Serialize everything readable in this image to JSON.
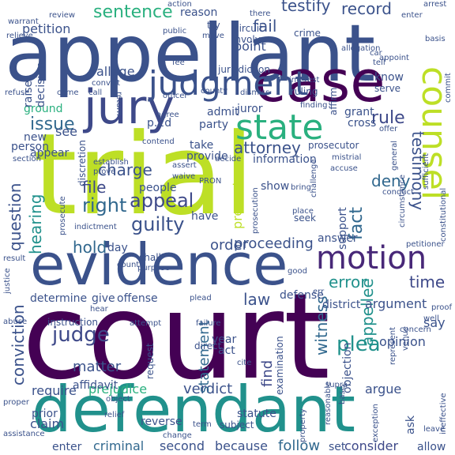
{
  "words": [
    {
      "text": "court",
      "color": "#440154"
    },
    {
      "text": "trial",
      "color": "#bddf26"
    },
    {
      "text": "appellant",
      "color": "#3b528b"
    },
    {
      "text": "defendant",
      "color": "#21918c"
    },
    {
      "text": "evidence",
      "color": "#3b528b"
    },
    {
      "text": "case",
      "color": "#440154"
    },
    {
      "text": "jury",
      "color": "#3e4989"
    },
    {
      "text": "judgment",
      "color": "#3b528b"
    },
    {
      "text": "counsel",
      "color": "#bddf26"
    },
    {
      "text": "state",
      "color": "#2ab07f"
    },
    {
      "text": "motion",
      "color": "#482878"
    },
    {
      "text": "attorney",
      "color": "#3b528b"
    },
    {
      "text": "appeal",
      "color": "#3e4989"
    },
    {
      "text": "guilty",
      "color": "#3b528b"
    },
    {
      "text": "right",
      "color": "#31688e"
    },
    {
      "text": "file",
      "color": "#3e4989"
    },
    {
      "text": "charge",
      "color": "#3b528b"
    },
    {
      "text": "issue",
      "color": "#31688e"
    },
    {
      "text": "rule",
      "color": "#3e4989"
    },
    {
      "text": "sentence",
      "color": "#2ab07f"
    },
    {
      "text": "testify",
      "color": "#3b528b"
    },
    {
      "text": "record",
      "color": "#3b528b"
    },
    {
      "text": "error",
      "color": "#21918c"
    },
    {
      "text": "time",
      "color": "#3e4989"
    },
    {
      "text": "judge",
      "color": "#3e4989"
    },
    {
      "text": "plea",
      "color": "#21918c"
    },
    {
      "text": "conviction",
      "color": "#3b528b"
    },
    {
      "text": "testimony",
      "color": "#3b528b"
    },
    {
      "text": "fact",
      "color": "#31688e"
    },
    {
      "text": "appellee",
      "color": "#21918c"
    },
    {
      "text": "witness",
      "color": "#31688e"
    },
    {
      "text": "proceeding",
      "color": "#3b528b"
    },
    {
      "text": "hearing",
      "color": "#21918c"
    },
    {
      "text": "question",
      "color": "#3b528b"
    },
    {
      "text": "verdict",
      "color": "#3b528b"
    },
    {
      "text": "statement",
      "color": "#31688e"
    },
    {
      "text": "deny",
      "color": "#31688e"
    },
    {
      "text": "present",
      "color": "#bddf26"
    },
    {
      "text": "order",
      "color": "#3b528b"
    },
    {
      "text": "hold",
      "color": "#31688e"
    },
    {
      "text": "law",
      "color": "#3b528b"
    },
    {
      "text": "find",
      "color": "#3e4989"
    },
    {
      "text": "fail",
      "color": "#3b528b"
    },
    {
      "text": "point",
      "color": "#3b528b"
    },
    {
      "text": "petition",
      "color": "#3b528b"
    },
    {
      "text": "prejudice",
      "color": "#2ab07f"
    },
    {
      "text": "matter",
      "color": "#3b528b"
    },
    {
      "text": "criminal",
      "color": "#31688e"
    },
    {
      "text": "second",
      "color": "#3b528b"
    },
    {
      "text": "because",
      "color": "#3b528b"
    },
    {
      "text": "follow",
      "color": "#31688e"
    },
    {
      "text": "consider",
      "color": "#3e4989"
    },
    {
      "text": "claim",
      "color": "#3b528b"
    },
    {
      "text": "require",
      "color": "#3b528b"
    },
    {
      "text": "reverse",
      "color": "#3b528b"
    },
    {
      "text": "argue",
      "color": "#3b528b"
    },
    {
      "text": "opinion",
      "color": "#3b528b"
    },
    {
      "text": "argument",
      "color": "#3b528b"
    },
    {
      "text": "say",
      "color": "#3b528b"
    },
    {
      "text": "defense",
      "color": "#3b528b"
    },
    {
      "text": "determine",
      "color": "#3b528b"
    },
    {
      "text": "give",
      "color": "#3b528b"
    },
    {
      "text": "offense",
      "color": "#3b528b"
    },
    {
      "text": "people",
      "color": "#3b528b"
    },
    {
      "text": "new",
      "color": "#3b528b"
    },
    {
      "text": "person",
      "color": "#3b528b"
    },
    {
      "text": "party",
      "color": "#3b528b"
    },
    {
      "text": "juror",
      "color": "#3b528b"
    },
    {
      "text": "grant",
      "color": "#3b528b"
    },
    {
      "text": "cross",
      "color": "#3b528b"
    },
    {
      "text": "admit",
      "color": "#3b528b"
    },
    {
      "text": "ground",
      "color": "#2ab07f"
    },
    {
      "text": "decision",
      "color": "#3b528b"
    },
    {
      "text": "raise",
      "color": "#3b528b"
    },
    {
      "text": "allege",
      "color": "#3b528b"
    },
    {
      "text": "appear",
      "color": "#3b528b"
    },
    {
      "text": "see",
      "color": "#3b528b"
    },
    {
      "text": "take",
      "color": "#3b528b"
    },
    {
      "text": "provide",
      "color": "#3b528b"
    },
    {
      "text": "information",
      "color": "#3b528b"
    },
    {
      "text": "prosecutor",
      "color": "#3b528b"
    },
    {
      "text": "show",
      "color": "#3b528b"
    },
    {
      "text": "support",
      "color": "#3b528b"
    },
    {
      "text": "year",
      "color": "#3b528b"
    },
    {
      "text": "act",
      "color": "#3b528b"
    },
    {
      "text": "district",
      "color": "#3b528b"
    },
    {
      "text": "objection",
      "color": "#3b528b"
    },
    {
      "text": "examination",
      "color": "#3b528b"
    },
    {
      "text": "request",
      "color": "#3b528b"
    },
    {
      "text": "affidavit",
      "color": "#3b528b"
    },
    {
      "text": "prior",
      "color": "#3b528b"
    },
    {
      "text": "statute",
      "color": "#3b528b"
    },
    {
      "text": "ask",
      "color": "#3b528b"
    },
    {
      "text": "enter",
      "color": "#3b528b"
    },
    {
      "text": "know",
      "color": "#3b528b"
    },
    {
      "text": "serve",
      "color": "#3b528b"
    },
    {
      "text": "affirm",
      "color": "#3b528b"
    },
    {
      "text": "p.2d",
      "color": "#3b528b"
    },
    {
      "text": "crime",
      "color": "#3b528b"
    },
    {
      "text": "answer",
      "color": "#3b528b"
    },
    {
      "text": "day",
      "color": "#3b528b"
    },
    {
      "text": "shall",
      "color": "#3b528b"
    },
    {
      "text": "have",
      "color": "#3b528b"
    },
    {
      "text": "reason",
      "color": "#3b528b"
    },
    {
      "text": "action",
      "color": "#3b528b"
    },
    {
      "text": "ruling",
      "color": "#3b528b"
    },
    {
      "text": "finding",
      "color": "#3b528b"
    },
    {
      "text": "allow",
      "color": "#3b528b"
    },
    {
      "text": "instruction",
      "color": "#3b528b"
    },
    {
      "text": "discretion",
      "color": "#3b528b"
    },
    {
      "text": "jurisdiction",
      "color": "#3b528b"
    },
    {
      "text": "circuit",
      "color": "#3b528b"
    },
    {
      "text": "involve",
      "color": "#3b528b"
    },
    {
      "text": "arrest",
      "color": "#3b528b"
    },
    {
      "text": "supra",
      "color": "#3b528b"
    },
    {
      "text": "exception",
      "color": "#3b528b"
    },
    {
      "text": "set",
      "color": "#3b528b"
    },
    {
      "text": "subject",
      "color": "#3b528b"
    },
    {
      "text": "direct",
      "color": "#3b528b"
    },
    {
      "text": "term",
      "color": "#3b528b"
    },
    {
      "text": "cite",
      "color": "#3b528b"
    },
    {
      "text": "result",
      "color": "#3b528b"
    },
    {
      "text": "justice",
      "color": "#3b528b"
    },
    {
      "text": "abuse",
      "color": "#3b528b"
    },
    {
      "text": "good",
      "color": "#3b528b"
    },
    {
      "text": "relief",
      "color": "#3b528b"
    },
    {
      "text": "proper",
      "color": "#3b528b"
    },
    {
      "text": "assistance",
      "color": "#3b528b"
    },
    {
      "text": "ineffective",
      "color": "#3b528b"
    },
    {
      "text": "leave",
      "color": "#3b528b"
    },
    {
      "text": "venue",
      "color": "#3b528b"
    },
    {
      "text": "concern",
      "color": "#3b528b"
    },
    {
      "text": "proof",
      "color": "#3b528b"
    },
    {
      "text": "petitioner",
      "color": "#3b528b"
    },
    {
      "text": "commit",
      "color": "#3b528b"
    },
    {
      "text": "convict",
      "color": "#3b528b"
    },
    {
      "text": "officer",
      "color": "#3b528b"
    },
    {
      "text": "dismiss",
      "color": "#3b528b"
    },
    {
      "text": "county",
      "color": "#3b528b"
    },
    {
      "text": "interest",
      "color": "#3b528b"
    },
    {
      "text": "review",
      "color": "#3b528b"
    },
    {
      "text": "warrant",
      "color": "#3b528b"
    },
    {
      "text": "refuse",
      "color": "#3b528b"
    },
    {
      "text": "basis",
      "color": "#3b528b"
    },
    {
      "text": "allegation",
      "color": "#3b528b"
    },
    {
      "text": "appoint",
      "color": "#3b528b"
    },
    {
      "text": "move",
      "color": "#3b528b"
    },
    {
      "text": "relieve",
      "color": "#3b528b"
    },
    {
      "text": "call",
      "color": "#3b528b"
    },
    {
      "text": "return",
      "color": "#3b528b"
    },
    {
      "text": "agree",
      "color": "#3b528b"
    },
    {
      "text": "contend",
      "color": "#3b528b"
    },
    {
      "text": "establish",
      "color": "#3b528b"
    },
    {
      "text": "assert",
      "color": "#3b528b"
    },
    {
      "text": "decide",
      "color": "#3b528b"
    },
    {
      "text": "accuse",
      "color": "#3b528b"
    },
    {
      "text": "mistrial",
      "color": "#3b528b"
    },
    {
      "text": "challenge",
      "color": "#3b528b"
    },
    {
      "text": "waive",
      "color": "#3b528b"
    },
    {
      "text": "prove",
      "color": "#3b528b"
    },
    {
      "text": "section",
      "color": "#3b528b"
    },
    {
      "text": "indictment",
      "color": "#3b528b"
    },
    {
      "text": "seek",
      "color": "#3b528b"
    },
    {
      "text": "bring",
      "color": "#3b528b"
    },
    {
      "text": "place",
      "color": "#3b528b"
    },
    {
      "text": "purpose",
      "color": "#3b528b"
    },
    {
      "text": "plead",
      "color": "#3b528b"
    },
    {
      "text": "failure",
      "color": "#3b528b"
    },
    {
      "text": "attempt",
      "color": "#3b528b"
    },
    {
      "text": "hear",
      "color": "#3b528b"
    },
    {
      "text": "err",
      "color": "#3b528b"
    },
    {
      "text": "circumstance",
      "color": "#3b528b"
    },
    {
      "text": "constitutional",
      "color": "#3b528b"
    },
    {
      "text": "sufficient",
      "color": "#3b528b"
    },
    {
      "text": "conduct",
      "color": "#3b528b"
    },
    {
      "text": "represent",
      "color": "#3b528b"
    },
    {
      "text": "reasonable",
      "color": "#3b528b"
    },
    {
      "text": "change",
      "color": "#3b528b"
    },
    {
      "text": "object",
      "color": "#3b528b"
    },
    {
      "text": "come",
      "color": "#3b528b"
    },
    {
      "text": "try",
      "color": "#3b528b"
    },
    {
      "text": "there",
      "color": "#3b528b"
    },
    {
      "text": "enter",
      "color": "#3b528b"
    },
    {
      "text": "public",
      "color": "#3b528b"
    },
    {
      "text": "well",
      "color": "#3b528b"
    },
    {
      "text": "car",
      "color": "#3b528b"
    },
    {
      "text": "tell",
      "color": "#3b528b"
    },
    {
      "text": "fee",
      "color": "#3b528b"
    },
    {
      "text": "offer",
      "color": "#3b528b"
    },
    {
      "text": "prosecution",
      "color": "#3b528b"
    },
    {
      "text": "count",
      "color": "#3b528b"
    },
    {
      "text": "PRON",
      "color": "#3b528b"
    },
    {
      "text": "general",
      "color": "#3b528b"
    },
    {
      "text": "prosecute",
      "color": "#3b528b"
    },
    {
      "text": "base",
      "color": "#3b528b"
    },
    {
      "text": "property",
      "color": "#3b528b"
    }
  ]
}
